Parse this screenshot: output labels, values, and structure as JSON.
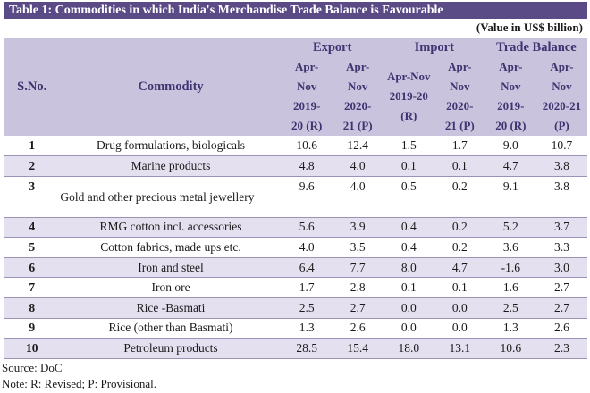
{
  "title": "Table 1: Commodities in which India's Merchandise Trade Balance is Favourable",
  "value_note": "(Value in US$ billion)",
  "headers": {
    "sno": "S.No.",
    "commodity": "Commodity",
    "export": "Export",
    "import": "Import",
    "trade_balance": "Trade Balance",
    "periods": [
      [
        "Apr-",
        "Nov",
        "2019-",
        "20 (R)"
      ],
      [
        "Apr-",
        "Nov",
        "2020-",
        "21 (P)"
      ],
      [
        "Apr-Nov",
        "2019-20",
        "(R)"
      ],
      [
        "Apr-",
        "Nov",
        "2020-",
        "21 (P)"
      ],
      [
        "Apr-",
        "Nov",
        "2019-",
        "20 (R)"
      ],
      [
        "Apr-",
        "Nov",
        "2020-21",
        "(P)"
      ]
    ]
  },
  "rows": [
    {
      "sno": "1",
      "commodity": "Drug formulations, biologicals",
      "values": [
        "10.6",
        "12.4",
        "1.5",
        "1.7",
        "9.0",
        "10.7"
      ]
    },
    {
      "sno": "2",
      "commodity": "Marine products",
      "values": [
        "4.8",
        "4.0",
        "0.1",
        "0.1",
        "4.7",
        "3.8"
      ]
    },
    {
      "sno": "3",
      "commodity": "Gold and other precious metal jewellery",
      "values": [
        "9.6",
        "4.0",
        "0.5",
        "0.2",
        "9.1",
        "3.8"
      ]
    },
    {
      "sno": "4",
      "commodity": "RMG cotton incl. accessories",
      "values": [
        "5.6",
        "3.9",
        "0.4",
        "0.2",
        "5.2",
        "3.7"
      ]
    },
    {
      "sno": "5",
      "commodity": "Cotton fabrics, made ups etc.",
      "values": [
        "4.0",
        "3.5",
        "0.4",
        "0.2",
        "3.6",
        "3.3"
      ]
    },
    {
      "sno": "6",
      "commodity": "Iron and steel",
      "values": [
        "6.4",
        "7.7",
        "8.0",
        "4.7",
        "-1.6",
        "3.0"
      ]
    },
    {
      "sno": "7",
      "commodity": "Iron ore",
      "values": [
        "1.7",
        "2.8",
        "0.1",
        "0.1",
        "1.6",
        "2.7"
      ]
    },
    {
      "sno": "8",
      "commodity": "Rice -Basmati",
      "values": [
        "2.5",
        "2.7",
        "0.0",
        "0.0",
        "2.5",
        "2.7"
      ]
    },
    {
      "sno": "9",
      "commodity": "Rice (other than Basmati)",
      "values": [
        "1.3",
        "2.6",
        "0.0",
        "0.0",
        "1.3",
        "2.6"
      ]
    },
    {
      "sno": "10",
      "commodity": "Petroleum products",
      "values": [
        "28.5",
        "15.4",
        "18.0",
        "13.1",
        "10.6",
        "2.3"
      ]
    }
  ],
  "source": "Source: DoC",
  "note": "Note: R: Revised; P: Provisional.",
  "colors": {
    "title_bg": "#5a4a86",
    "header_bg": "#c9c3dd",
    "header_text": "#3f3370",
    "stripe": "#e4e0ef"
  }
}
